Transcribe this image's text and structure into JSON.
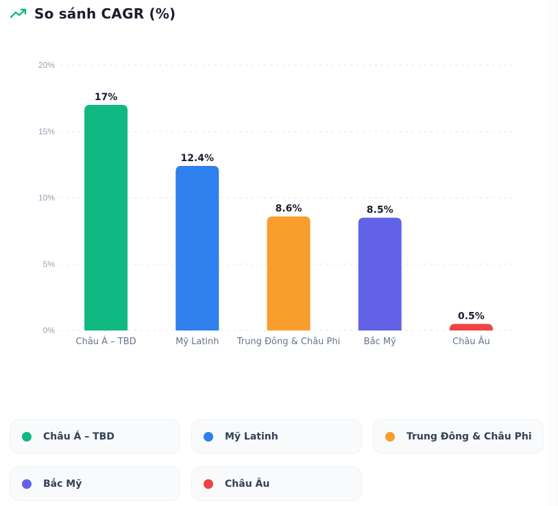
{
  "header": {
    "title": "So sánh CAGR (%)",
    "icon": "trending-up-icon",
    "icon_color": "#10b981"
  },
  "chart_data": {
    "type": "bar",
    "title": "So sánh CAGR (%)",
    "xlabel": "",
    "ylabel": "",
    "categories": [
      "Châu Á – TBD",
      "Mỹ Latinh",
      "Trung Đông & Châu Phi",
      "Bắc Mỹ",
      "Châu Âu"
    ],
    "values": [
      17,
      12.4,
      8.6,
      8.5,
      0.5
    ],
    "data_labels": [
      "17%",
      "12.4%",
      "8.6%",
      "8.5%",
      "0.5%"
    ],
    "colors": [
      "#10b981",
      "#2f7fec",
      "#f99d2d",
      "#6262e8",
      "#f04343"
    ],
    "ylim": [
      0,
      20
    ],
    "yticks": [
      0,
      5,
      10,
      15,
      20
    ],
    "ytick_labels": [
      "0%",
      "5%",
      "10%",
      "15%",
      "20%"
    ],
    "grid": true,
    "legend_position": "bottom"
  },
  "legend": {
    "items": [
      {
        "label": "Châu Á – TBD",
        "color": "#10b981"
      },
      {
        "label": "Mỹ Latinh",
        "color": "#2f7fec"
      },
      {
        "label": "Trung Đông & Châu Phi",
        "color": "#f99d2d"
      },
      {
        "label": "Bắc Mỹ",
        "color": "#6262e8"
      },
      {
        "label": "Châu Âu",
        "color": "#f04343"
      }
    ]
  }
}
